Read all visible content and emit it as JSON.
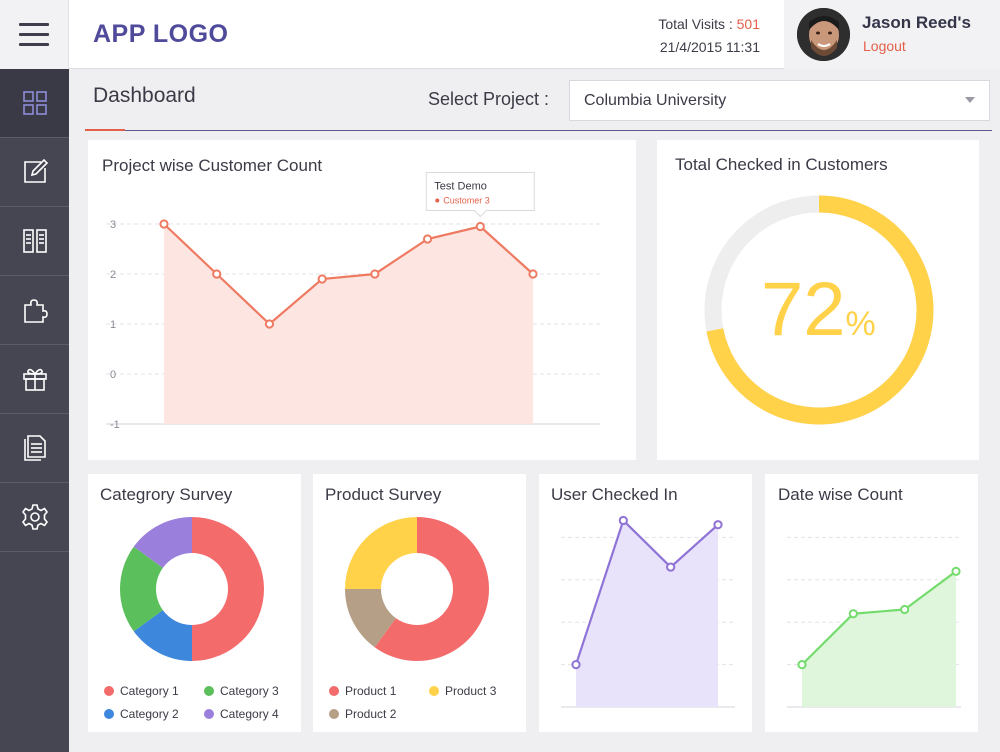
{
  "header": {
    "logo": "APP LOGO",
    "visits_label": "Total Visits : ",
    "visits_count": "501",
    "datetime": "21/4/2015 11:31",
    "user_name": "Jason Reed's",
    "logout": "Logout"
  },
  "sidebar": {
    "items": [
      {
        "icon": "grid-icon",
        "active": true
      },
      {
        "icon": "edit-icon",
        "active": false
      },
      {
        "icon": "book-icon",
        "active": false
      },
      {
        "icon": "puzzle-icon",
        "active": false
      },
      {
        "icon": "gift-icon",
        "active": false
      },
      {
        "icon": "document-icon",
        "active": false
      },
      {
        "icon": "gear-icon",
        "active": false
      }
    ]
  },
  "page": {
    "title": "Dashboard",
    "select_label": "Select Project :",
    "selected_project": "Columbia University"
  },
  "colors": {
    "accent": "#e4604a",
    "brand": "#4f4a9a",
    "sidebar": "#464653",
    "gauge": "#ffd24a",
    "purple_line": "#8f73d6",
    "green_line": "#73dc6c"
  },
  "cards": {
    "project_chart_title": "Project wise Customer Count",
    "gauge_title": "Total Checked in Customers",
    "gauge_value": "72",
    "gauge_unit": "%",
    "category_title": "Categrory Survey",
    "product_title": "Product Survey",
    "user_title": "User Checked In",
    "date_title": "Date wise Count",
    "tooltip_title": "Test Demo",
    "tooltip_value": "Customer 3"
  },
  "chart_data": [
    {
      "id": "project",
      "type": "area",
      "title": "Project wise Customer Count",
      "x": [
        1,
        2,
        3,
        4,
        5,
        6,
        7,
        8
      ],
      "values": [
        3,
        2,
        1,
        1.9,
        2,
        2.7,
        2.95,
        2
      ],
      "yticks": [
        "3",
        "2",
        "1",
        "0",
        "-1"
      ],
      "ylim": [
        -1,
        3
      ],
      "color": "#ee7a62",
      "fill": "#fde5e1",
      "tooltip": {
        "title": "Test Demo",
        "series": "Customer 3"
      }
    },
    {
      "id": "gauge",
      "type": "pie",
      "title": "Total Checked in Customers",
      "value": 72,
      "max": 100
    },
    {
      "id": "category",
      "type": "pie",
      "title": "Categrory Survey",
      "slices": [
        {
          "label": "Category 1",
          "value": 50,
          "color": "#f46b6b"
        },
        {
          "label": "Category 2",
          "value": 15,
          "color": "#3d87dc"
        },
        {
          "label": "Category 3",
          "value": 20,
          "color": "#5bbf5b"
        },
        {
          "label": "Category 4",
          "value": 15,
          "color": "#9b7fdc"
        }
      ]
    },
    {
      "id": "product",
      "type": "pie",
      "title": "Product Survey",
      "slices": [
        {
          "label": "Product 1",
          "value": 60,
          "color": "#f46b6b"
        },
        {
          "label": "Product 2",
          "value": 15,
          "color": "#b59f87"
        },
        {
          "label": "Product 3",
          "value": 25,
          "color": "#ffd24a"
        }
      ]
    },
    {
      "id": "user",
      "type": "area",
      "title": "User Checked In",
      "x": [
        1,
        2,
        3,
        4
      ],
      "values": [
        1,
        4.4,
        3.3,
        4.3
      ],
      "ylim": [
        0,
        5
      ],
      "color": "#8f73d6",
      "fill": "#e8e2fb"
    },
    {
      "id": "date",
      "type": "area",
      "title": "Date wise Count",
      "x": [
        1,
        2,
        3,
        4
      ],
      "values": [
        1,
        2.2,
        2.3,
        3.2
      ],
      "ylim": [
        0,
        5
      ],
      "color": "#73dc6c",
      "fill": "#dff6dd"
    }
  ]
}
